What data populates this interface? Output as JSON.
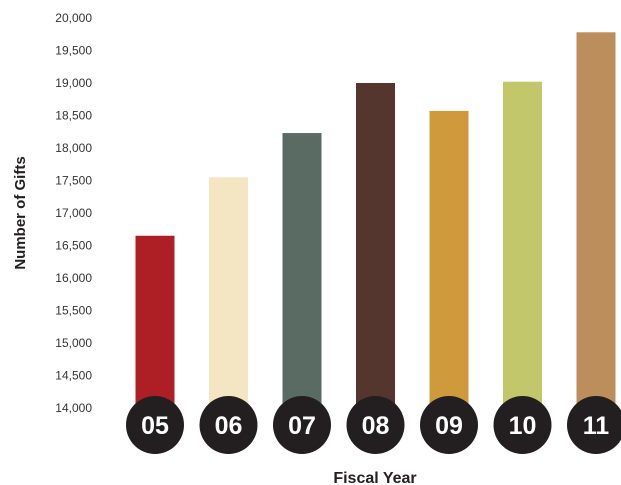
{
  "chart_data": {
    "type": "bar",
    "title": "",
    "xlabel": "Fiscal Year",
    "ylabel": "Number of Gifts",
    "categories": [
      "05",
      "06",
      "07",
      "08",
      "09",
      "10",
      "11"
    ],
    "values": [
      16650,
      17550,
      18230,
      19000,
      18570,
      19020,
      19780
    ],
    "ylim": [
      14000,
      20000
    ],
    "yticks": [
      "14,000",
      "14,500",
      "15,000",
      "15,500",
      "16,000",
      "16,500",
      "17,000",
      "17,500",
      "18,000",
      "18,500",
      "19,000",
      "19,500",
      "20,000"
    ],
    "grid": false,
    "legend": "none",
    "colors": [
      "#ad1f25",
      "#f5e6c3",
      "#5a6b64",
      "#55362f",
      "#ce9a3b",
      "#c3c76b",
      "#bb8e5b"
    ],
    "category_marker_color": "#231f20"
  }
}
